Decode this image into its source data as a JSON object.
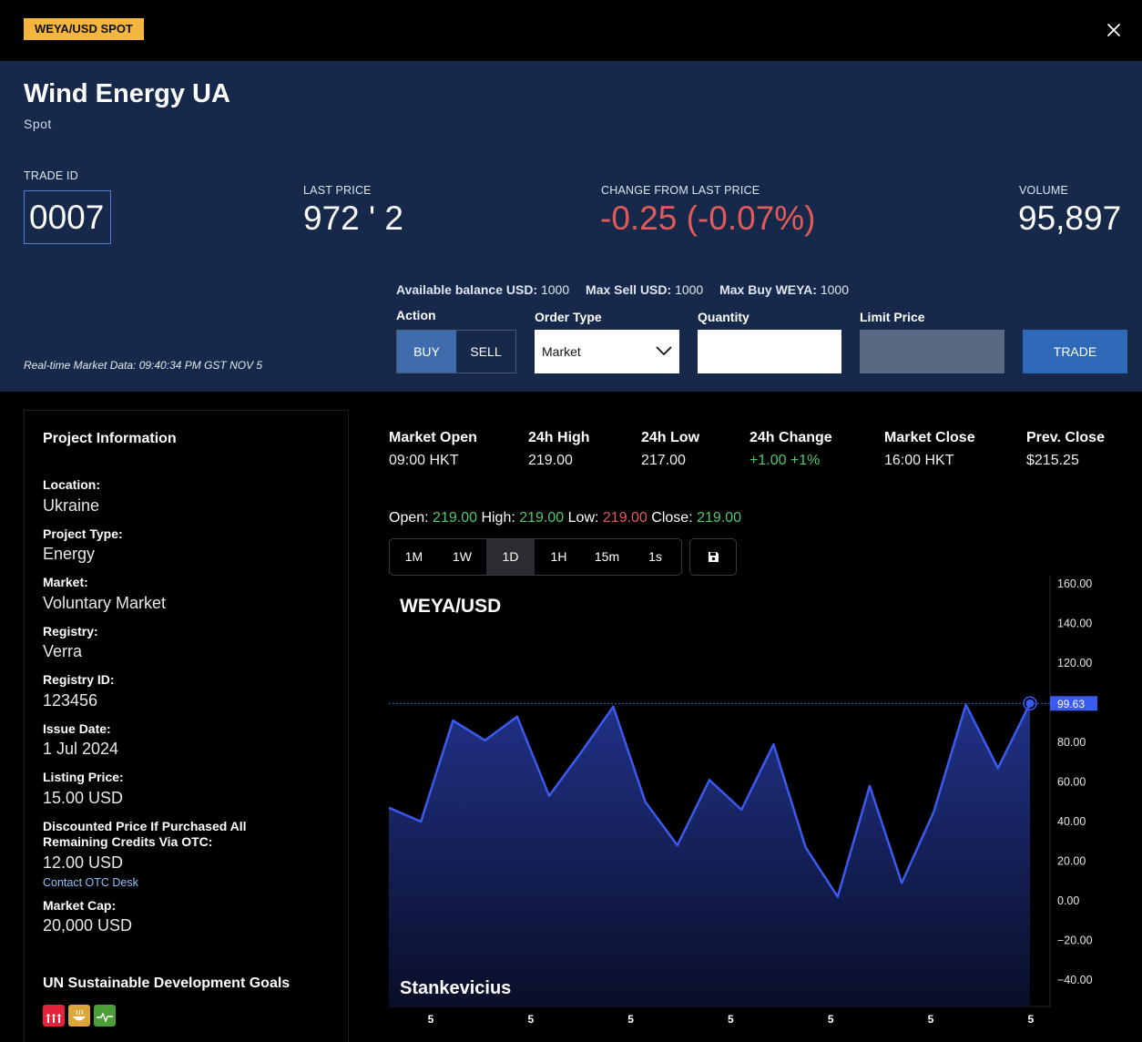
{
  "topbar": {
    "pair_badge": "WEYA/USD SPOT"
  },
  "header": {
    "title": "Wind Energy UA",
    "subtitle": "Spot",
    "trade_id_label": "TRADE ID",
    "trade_id": "0007",
    "last_price_label": "LAST PRICE",
    "last_price": "972 ' 2",
    "change_label": "CHANGE FROM LAST PRICE",
    "change": "-0.25 (-0.07%)",
    "volume_label": "VOLUME",
    "volume": "95,897",
    "balances": {
      "available_label": "Available balance USD:",
      "available_value": "1000",
      "max_sell_label": "Max Sell USD:",
      "max_sell_value": "1000",
      "max_buy_label": "Max Buy WEYA:",
      "max_buy_value": "1000"
    },
    "realtime": "Real-time Market Data: 09:40:34 PM GST NOV 5"
  },
  "order_form": {
    "action_label": "Action",
    "buy": "BUY",
    "sell": "SELL",
    "order_type_label": "Order Type",
    "order_type_value": "Market",
    "quantity_label": "Quantity",
    "quantity_value": "",
    "limit_price_label": "Limit Price",
    "trade_button": "TRADE"
  },
  "project_info": {
    "title": "Project Information",
    "fields": [
      {
        "label": "Location:",
        "value": "Ukraine"
      },
      {
        "label": "Project Type:",
        "value": "Energy"
      },
      {
        "label": "Market:",
        "value": "Voluntary Market"
      },
      {
        "label": "Registry:",
        "value": "Verra"
      },
      {
        "label": "Registry ID:",
        "value": "123456"
      },
      {
        "label": "Issue Date:",
        "value": "1 Jul 2024"
      },
      {
        "label": "Listing Price:",
        "value": "15.00 USD"
      },
      {
        "label": "Discounted Price If Purchased All Remaining Credits Via OTC:",
        "value": "12.00 USD"
      },
      {
        "label": "Market Cap:",
        "value": "20,000 USD"
      }
    ],
    "otc_link": "Contact OTC Desk",
    "sdg_title": "UN Sustainable Development Goals",
    "sdg_icons": [
      {
        "icon": "sdg-no-poverty-icon",
        "color": "#e5243b"
      },
      {
        "icon": "sdg-zero-hunger-icon",
        "color": "#dda63a"
      },
      {
        "icon": "sdg-good-health-icon",
        "color": "#4c9f38"
      }
    ]
  },
  "market_stats": [
    {
      "label": "Market Open",
      "value": "09:00 HKT"
    },
    {
      "label": "24h High",
      "value": "219.00"
    },
    {
      "label": "24h Low",
      "value": "217.00"
    },
    {
      "label": "24h Change",
      "value": "+1.00 +1%"
    },
    {
      "label": "Market Close",
      "value": "16:00 HKT"
    },
    {
      "label": "Prev. Close",
      "value": "$215.25"
    }
  ],
  "ohlc": {
    "open_label": "Open:",
    "open": "219.00",
    "high_label": "High:",
    "high": "219.00",
    "low_label": "Low:",
    "low": "219.00",
    "close_label": "Close:",
    "close": "219.00"
  },
  "timeframes": [
    "1M",
    "1W",
    "1D",
    "1H",
    "15m",
    "1s"
  ],
  "active_timeframe": "1D",
  "colors": {
    "accent": "#3f6cad",
    "line": "#3b5bf0",
    "positive": "#4cc96b",
    "negative": "#e35a5a",
    "badge": "#f4b63f"
  },
  "chart_data": {
    "type": "area",
    "title": "WEYA/USD",
    "watermark": "Stankevicius",
    "y_ticks": [
      "160.00",
      "140.00",
      "120.00",
      "100.00",
      "80.00",
      "60.00",
      "40.00",
      "20.00",
      "0.00",
      "−20.00",
      "−40.00"
    ],
    "x_ticks": [
      "5",
      "5",
      "5",
      "5",
      "5",
      "5",
      "5"
    ],
    "ylim": [
      -40,
      160
    ],
    "values": [
      47,
      40,
      91,
      81,
      93,
      53,
      75,
      98,
      50,
      28,
      61,
      46,
      79,
      27,
      2,
      58,
      9,
      45,
      99,
      67,
      99.63
    ],
    "last_value_label": "99.63",
    "grid": false
  }
}
